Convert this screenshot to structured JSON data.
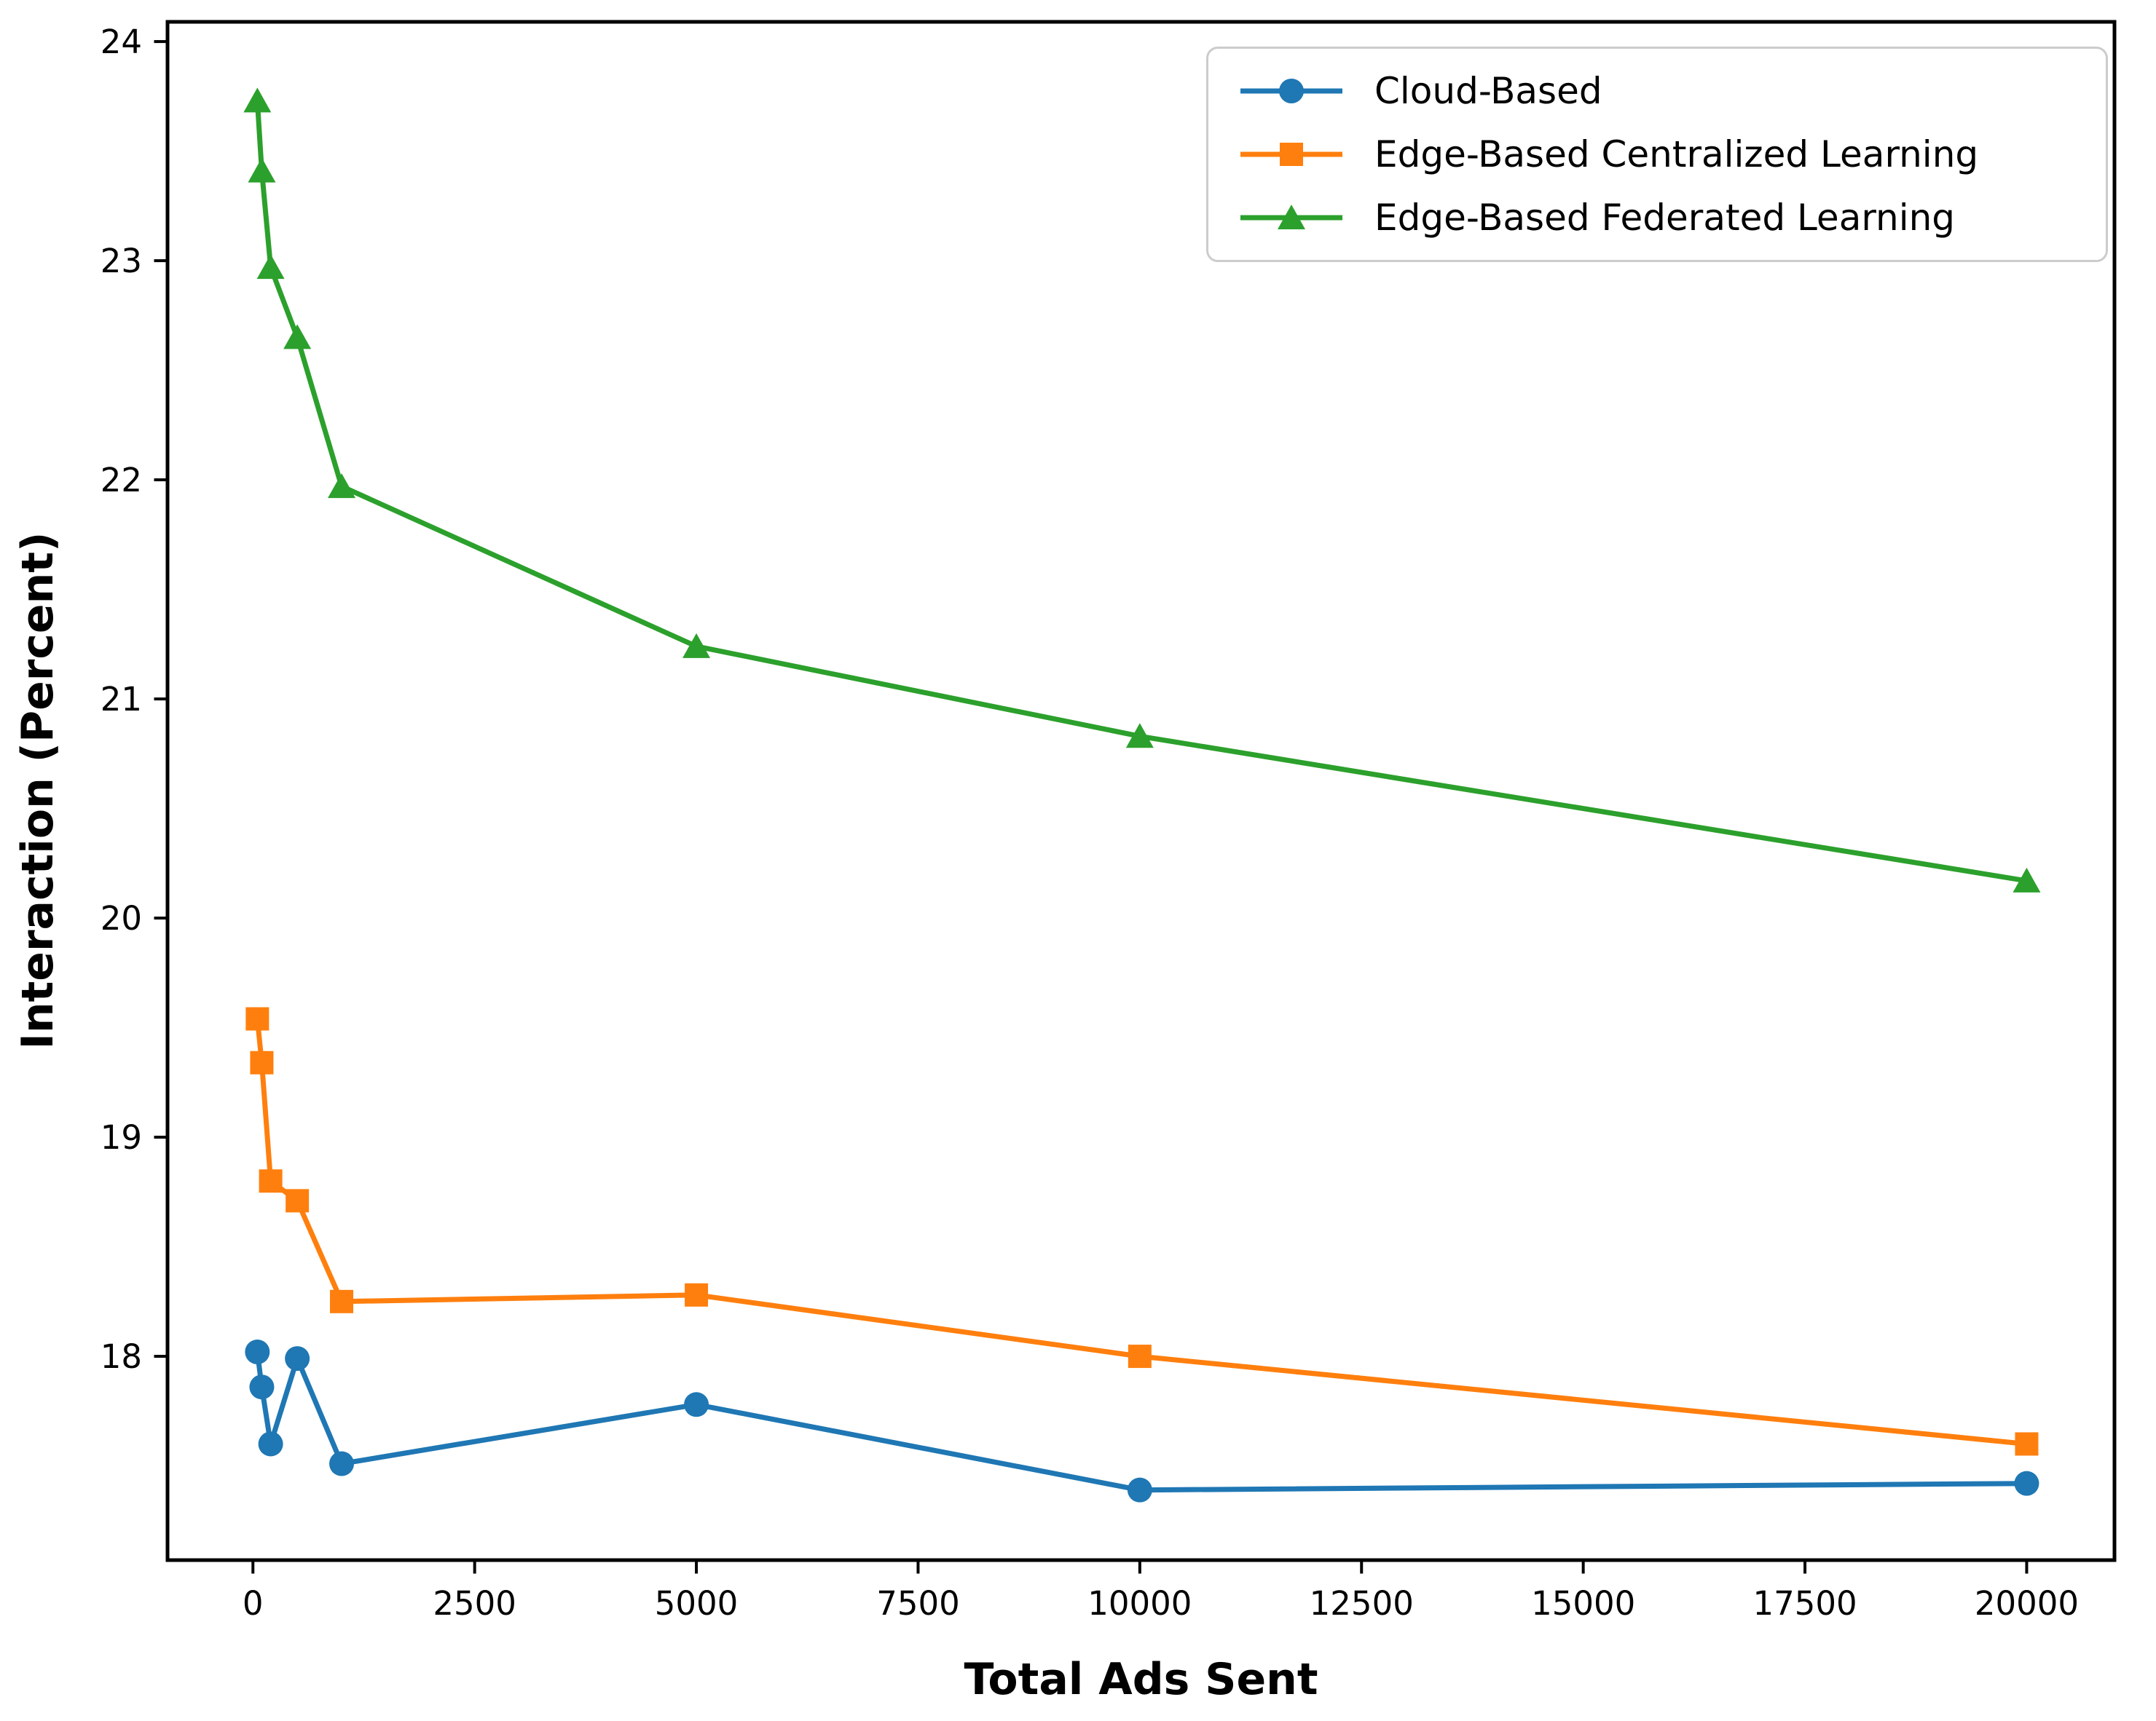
{
  "figure": {
    "background": "#ffffff",
    "spine_color": "#000000",
    "tick_color": "#000000",
    "legend_border_color": "#cccccc"
  },
  "chart_data": {
    "type": "line",
    "title": "",
    "xlabel": "Total Ads Sent",
    "ylabel": "Interaction (Percent)",
    "x": [
      50,
      100,
      200,
      500,
      1000,
      5000,
      10000,
      20000
    ],
    "series": [
      {
        "name": "Cloud-Based",
        "color": "#1f77b4",
        "marker": "circle",
        "values": [
          18.02,
          17.86,
          17.6,
          17.99,
          17.51,
          17.78,
          17.39,
          17.42
        ]
      },
      {
        "name": "Edge-Based Centralized Learning",
        "color": "#ff7f0e",
        "marker": "square",
        "values": [
          19.54,
          19.34,
          18.8,
          18.71,
          18.25,
          18.28,
          18.0,
          17.6
        ]
      },
      {
        "name": "Edge-Based Federated Learning",
        "color": "#2ca02c",
        "marker": "triangle",
        "values": [
          23.73,
          23.41,
          22.97,
          22.65,
          21.97,
          21.24,
          20.83,
          20.17
        ]
      }
    ],
    "x_ticks": [
      0,
      2500,
      5000,
      7500,
      10000,
      12500,
      15000,
      17500,
      20000
    ],
    "x_tick_labels": [
      "0",
      "2500",
      "5000",
      "7500",
      "10000",
      "12500",
      "15000",
      "17500",
      "20000"
    ],
    "y_ticks": [
      18,
      19,
      20,
      21,
      22,
      23,
      24
    ],
    "y_tick_labels": [
      "18",
      "19",
      "20",
      "21",
      "22",
      "23",
      "24"
    ],
    "xlim": [
      -963,
      20990
    ],
    "ylim": [
      17.07,
      24.09
    ],
    "grid": false,
    "legend_position": "upper right"
  }
}
